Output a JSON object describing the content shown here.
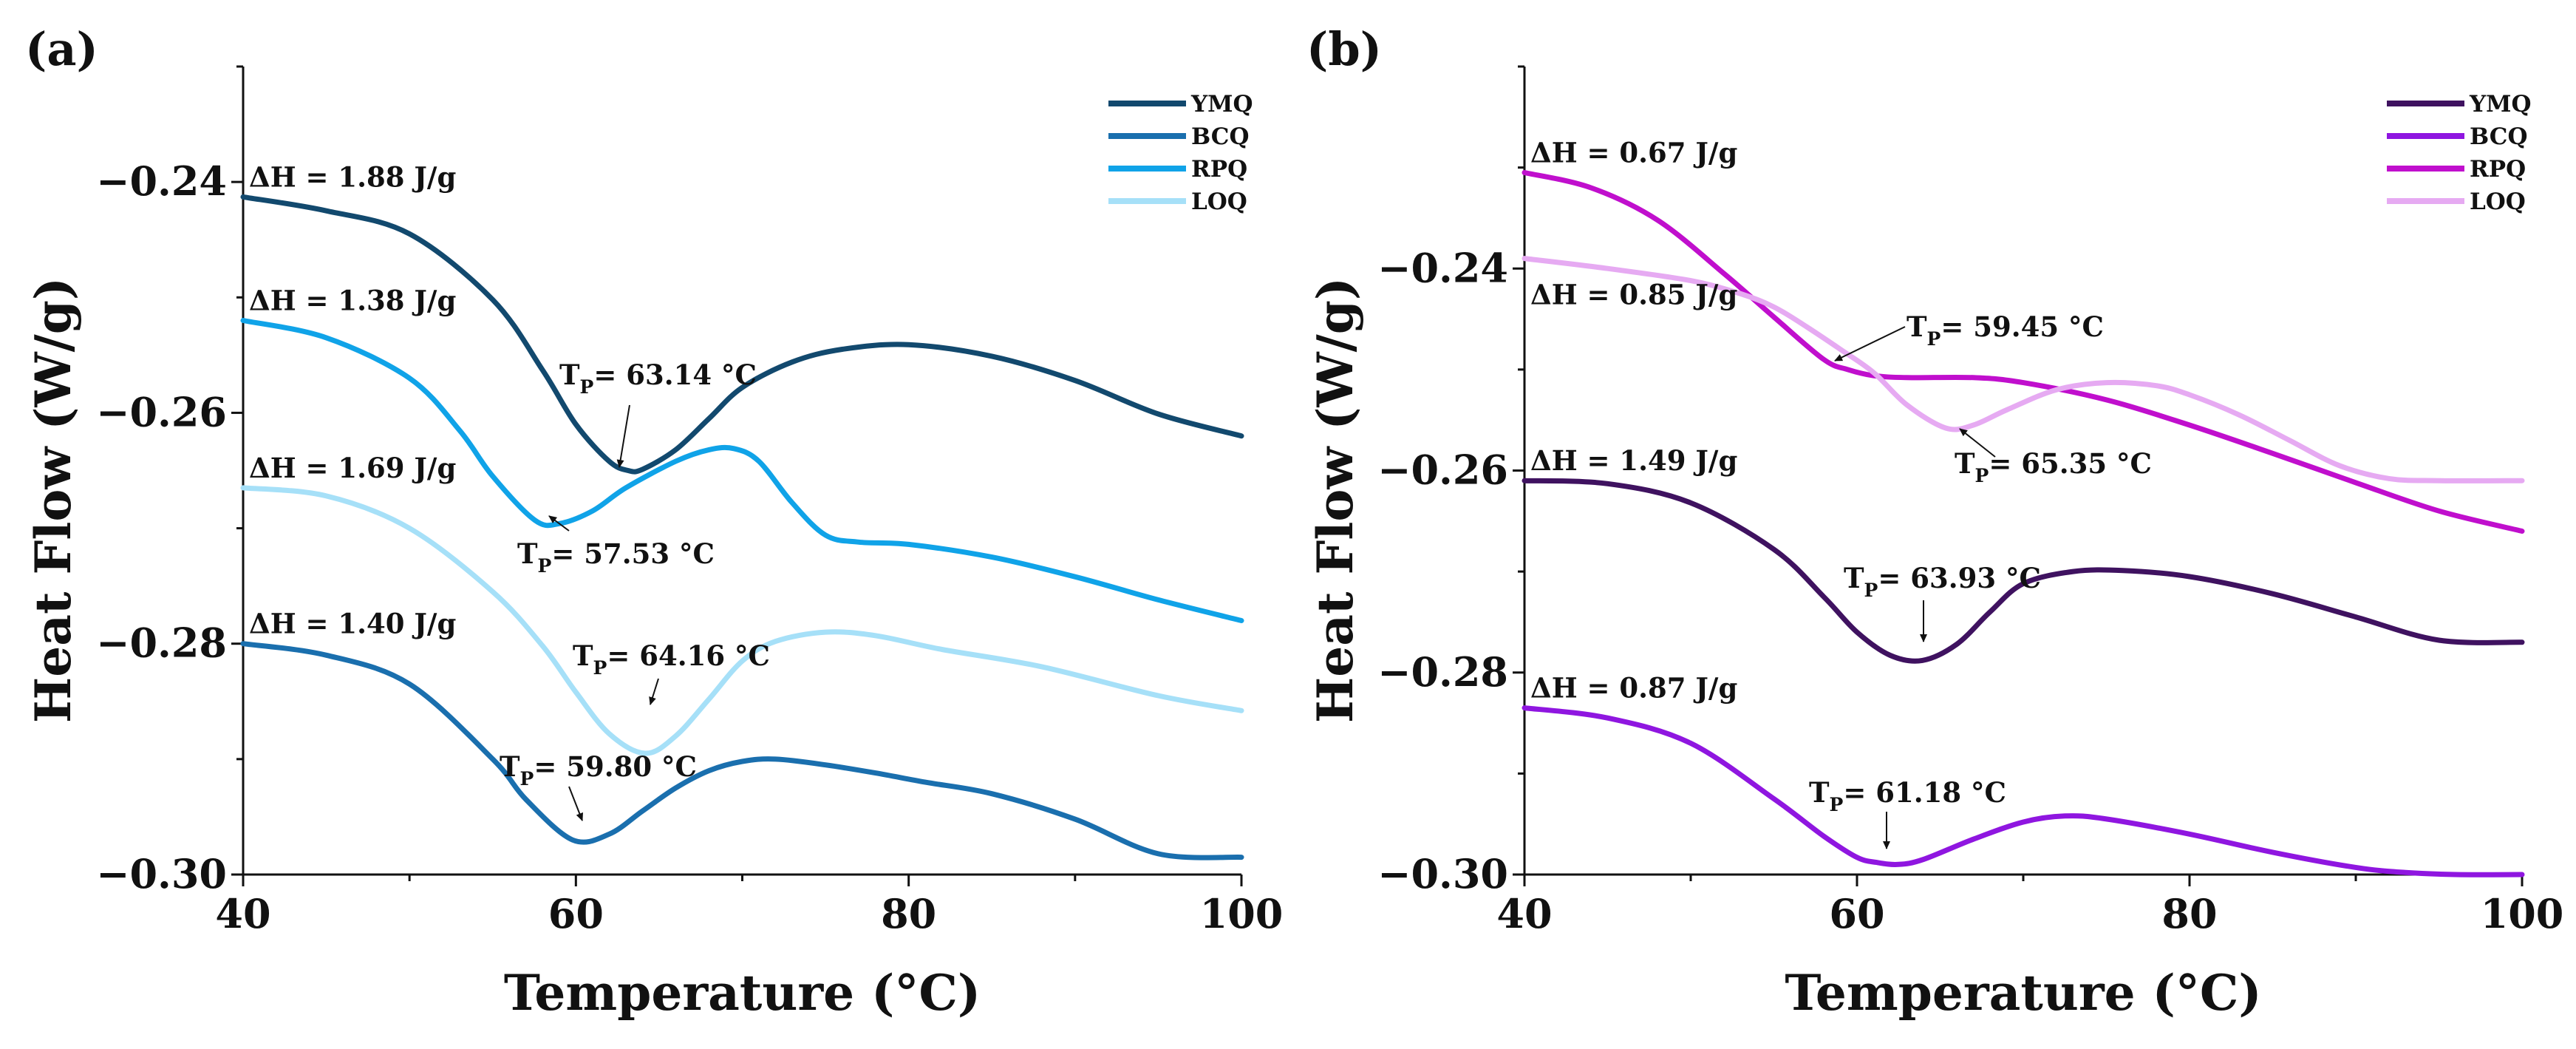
{
  "chart_data": [
    {
      "type": "line",
      "panel_label": "(a)",
      "xlabel": "Temperature (°C)",
      "ylabel": "Heat Flow (W/g)",
      "xlim": [
        40,
        100
      ],
      "ylim": [
        -0.3,
        -0.23
      ],
      "xticks": [
        40,
        60,
        80,
        100
      ],
      "xtick_labels": [
        "40",
        "60",
        "80",
        "100"
      ],
      "yticks": [
        -0.3,
        -0.28,
        -0.26,
        -0.24
      ],
      "ytick_labels": [
        "−0.30",
        "−0.28",
        "−0.26",
        "−0.24"
      ],
      "legend": "top-right",
      "series": [
        {
          "name": "YMQ",
          "color": "#12496e",
          "x": [
            40,
            45,
            50,
            55,
            58,
            60,
            62,
            63.14,
            64,
            66,
            68,
            70,
            73,
            76,
            80,
            85,
            90,
            95,
            100
          ],
          "y": [
            -0.2413,
            -0.2425,
            -0.2445,
            -0.2502,
            -0.2563,
            -0.261,
            -0.2642,
            -0.265,
            -0.2649,
            -0.2632,
            -0.2605,
            -0.2578,
            -0.2556,
            -0.2545,
            -0.2541,
            -0.2551,
            -0.2572,
            -0.2601,
            -0.262
          ]
        },
        {
          "name": "BCQ",
          "color": "#1a6fae",
          "x": [
            40,
            45,
            50,
            55,
            57,
            59.8,
            62,
            64,
            66,
            68,
            70,
            72,
            75,
            78,
            81,
            85,
            90,
            95,
            100
          ],
          "y": [
            -0.28,
            -0.281,
            -0.2835,
            -0.29,
            -0.2935,
            -0.297,
            -0.2965,
            -0.2945,
            -0.2925,
            -0.291,
            -0.2902,
            -0.29,
            -0.2905,
            -0.2912,
            -0.292,
            -0.293,
            -0.2952,
            -0.2982,
            -0.2985
          ]
        },
        {
          "name": "RPQ",
          "color": "#10a3e8",
          "x": [
            40,
            45,
            50,
            53,
            55,
            57.53,
            59,
            61,
            63,
            66,
            68,
            69.5,
            71,
            73,
            75,
            77,
            80,
            85,
            90,
            95,
            100
          ],
          "y": [
            -0.252,
            -0.2535,
            -0.257,
            -0.2615,
            -0.2655,
            -0.2693,
            -0.2696,
            -0.2685,
            -0.2665,
            -0.2642,
            -0.2632,
            -0.2631,
            -0.2642,
            -0.2678,
            -0.2706,
            -0.2712,
            -0.2714,
            -0.2725,
            -0.2742,
            -0.2762,
            -0.278
          ]
        },
        {
          "name": "LOQ",
          "color": "#a6e0f8",
          "x": [
            40,
            45,
            50,
            55,
            58,
            60,
            62,
            64.16,
            66,
            68,
            70,
            72,
            75,
            78,
            82,
            88,
            95,
            100
          ],
          "y": [
            -0.2665,
            -0.2672,
            -0.27,
            -0.2755,
            -0.2802,
            -0.2842,
            -0.2878,
            -0.2895,
            -0.288,
            -0.2848,
            -0.2815,
            -0.2798,
            -0.279,
            -0.2793,
            -0.2805,
            -0.282,
            -0.2845,
            -0.2858
          ]
        }
      ],
      "annotations": [
        {
          "text": "ΔH = 1.88 J/g",
          "x": 40,
          "y": -0.2413
        },
        {
          "text": "ΔH = 1.38 J/g",
          "x": 40,
          "y": -0.252
        },
        {
          "text": "ΔH = 1.69 J/g",
          "x": 40,
          "y": -0.2665
        },
        {
          "text": "ΔH = 1.40 J/g",
          "x": 40,
          "y": -0.28
        }
      ],
      "peak_labels": [
        {
          "prefix": "T",
          "sub": "P",
          "text": "= 63.14 °C",
          "x": 63.14,
          "y": -0.265
        },
        {
          "prefix": "T",
          "sub": "P",
          "text": "= 57.53 °C",
          "x": 57.53,
          "y": -0.2693
        },
        {
          "prefix": "T",
          "sub": "P",
          "text": "= 64.16 °C",
          "x": 64.16,
          "y": -0.2895
        },
        {
          "prefix": "T",
          "sub": "P",
          "text": "= 59.80 °C",
          "x": 59.8,
          "y": -0.297
        }
      ]
    },
    {
      "type": "line",
      "panel_label": "(b)",
      "xlabel": "Temperature (°C)",
      "ylabel": "Heat Flow (W/g)",
      "xlim": [
        40,
        100
      ],
      "ylim": [
        -0.3,
        -0.22
      ],
      "xticks": [
        40,
        60,
        80,
        100
      ],
      "xtick_labels": [
        "40",
        "60",
        "80",
        "100"
      ],
      "yticks": [
        -0.3,
        -0.28,
        -0.26,
        -0.24
      ],
      "ytick_labels": [
        "−0.30",
        "−0.28",
        "−0.26",
        "−0.24"
      ],
      "legend": "top-right",
      "series": [
        {
          "name": "YMQ",
          "color": "#3f1260",
          "x": [
            40,
            45,
            50,
            55,
            58,
            60,
            62,
            63.93,
            66,
            68,
            70,
            73,
            76,
            80,
            85,
            90,
            95,
            100
          ],
          "y": [
            -0.261,
            -0.2613,
            -0.2632,
            -0.2678,
            -0.2725,
            -0.276,
            -0.2783,
            -0.2788,
            -0.2772,
            -0.274,
            -0.2712,
            -0.27,
            -0.2699,
            -0.2705,
            -0.2722,
            -0.2745,
            -0.2768,
            -0.277
          ]
        },
        {
          "name": "BCQ",
          "color": "#8f16e0",
          "x": [
            40,
            45,
            50,
            55,
            58,
            60,
            61.18,
            62.5,
            64,
            67,
            70,
            72.5,
            75,
            80,
            85,
            90,
            93,
            96,
            100
          ],
          "y": [
            -0.2835,
            -0.2845,
            -0.287,
            -0.2925,
            -0.2962,
            -0.2983,
            -0.2988,
            -0.299,
            -0.2985,
            -0.2965,
            -0.2948,
            -0.2942,
            -0.2945,
            -0.296,
            -0.2978,
            -0.2993,
            -0.2998,
            -0.3,
            -0.3
          ]
        },
        {
          "name": "RPQ",
          "color": "#c00fcd",
          "x": [
            40,
            44,
            48,
            52,
            55,
            58,
            59.45,
            61,
            63,
            67,
            70,
            75,
            80,
            85,
            90,
            95,
            100
          ],
          "y": [
            -0.2305,
            -0.232,
            -0.2352,
            -0.2405,
            -0.2448,
            -0.249,
            -0.25,
            -0.2506,
            -0.2508,
            -0.2508,
            -0.2513,
            -0.253,
            -0.2555,
            -0.2583,
            -0.2612,
            -0.264,
            -0.266
          ]
        },
        {
          "name": "LOQ",
          "color": "#e6aaf2",
          "x": [
            40,
            45,
            50,
            53,
            55,
            57,
            59,
            61,
            63,
            65.35,
            67,
            69,
            72,
            75,
            78,
            80,
            83,
            86,
            89,
            92,
            95,
            100
          ],
          "y": [
            -0.239,
            -0.24,
            -0.2412,
            -0.2425,
            -0.2438,
            -0.2458,
            -0.248,
            -0.2503,
            -0.2535,
            -0.2558,
            -0.2555,
            -0.254,
            -0.252,
            -0.2513,
            -0.2516,
            -0.2525,
            -0.2545,
            -0.257,
            -0.2595,
            -0.2608,
            -0.261,
            -0.261
          ]
        }
      ],
      "annotations": [
        {
          "text": "ΔH = 0.67 J/g",
          "x": 40,
          "y": -0.2305
        },
        {
          "text": "ΔH = 0.85 J/g",
          "x": 40,
          "y": -0.239
        },
        {
          "text": "ΔH = 1.49 J/g",
          "x": 40,
          "y": -0.261
        },
        {
          "text": "ΔH = 0.87 J/g",
          "x": 40,
          "y": -0.2835
        }
      ],
      "peak_labels": [
        {
          "prefix": "T",
          "sub": "P",
          "text": "= 59.45 °C",
          "x": 59.45,
          "y": -0.25
        },
        {
          "prefix": "T",
          "sub": "P",
          "text": "= 65.35 °C",
          "x": 65.35,
          "y": -0.2558
        },
        {
          "prefix": "T",
          "sub": "P",
          "text": "= 63.93 °C",
          "x": 63.93,
          "y": -0.2788
        },
        {
          "prefix": "T",
          "sub": "P",
          "text": "= 61.18 °C",
          "x": 61.18,
          "y": -0.2988
        }
      ]
    }
  ]
}
